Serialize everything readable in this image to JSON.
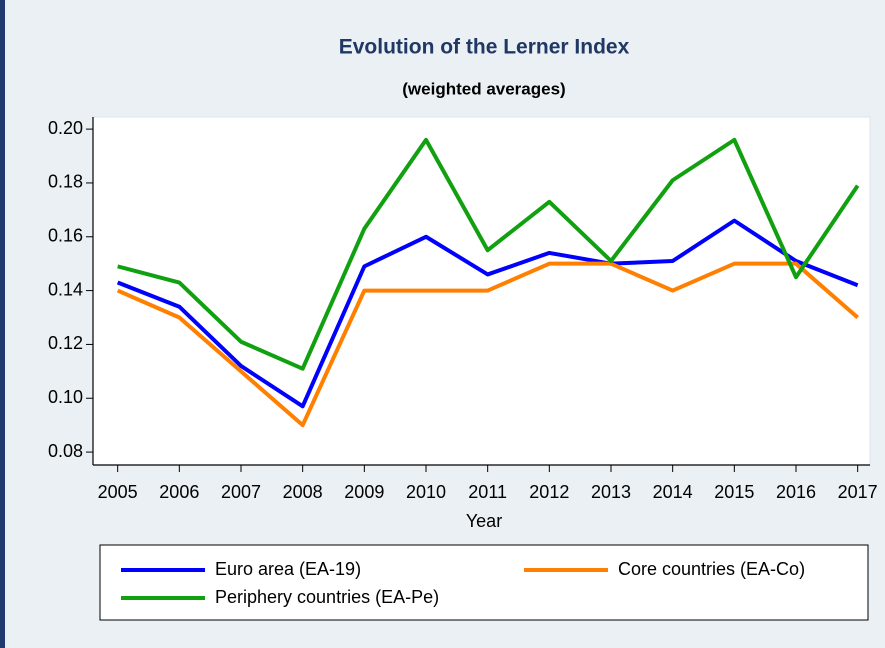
{
  "chart_data": {
    "type": "line",
    "title": "Evolution of the Lerner Index",
    "subtitle": "(weighted averages)",
    "x_label": "Year",
    "x": [
      2005,
      2006,
      2007,
      2008,
      2009,
      2010,
      2011,
      2012,
      2013,
      2014,
      2015,
      2016,
      2017
    ],
    "series": [
      {
        "name": "Euro area (EA-19)",
        "color": "#0000ff",
        "values": [
          0.143,
          0.134,
          0.112,
          0.097,
          0.149,
          0.16,
          0.146,
          0.154,
          0.15,
          0.151,
          0.166,
          0.151,
          0.142
        ]
      },
      {
        "name": "Core countries (EA-Co)",
        "color": "#ff8000",
        "values": [
          0.14,
          0.13,
          0.11,
          0.09,
          0.14,
          0.14,
          0.14,
          0.15,
          0.15,
          0.14,
          0.15,
          0.15,
          0.13
        ]
      },
      {
        "name": "Periphery countries (EA-Pe)",
        "color": "#10a010",
        "values": [
          0.149,
          0.143,
          0.121,
          0.111,
          0.163,
          0.196,
          0.155,
          0.173,
          0.151,
          0.181,
          0.196,
          0.145,
          0.179
        ]
      }
    ],
    "xlim": [
      2004.6,
      2017.2
    ],
    "xticks": [
      2005,
      2006,
      2007,
      2008,
      2009,
      2010,
      2011,
      2012,
      2013,
      2014,
      2015,
      2016,
      2017
    ],
    "ylim": [
      0.0752,
      0.2045
    ],
    "yticks": [
      0.08,
      {
        "value": 0.1,
        "label": "0.10"
      },
      0.12,
      0.14,
      0.16,
      0.18,
      {
        "value": 0.2,
        "label": "0.20"
      }
    ],
    "grid": false,
    "legend": "bottom"
  }
}
